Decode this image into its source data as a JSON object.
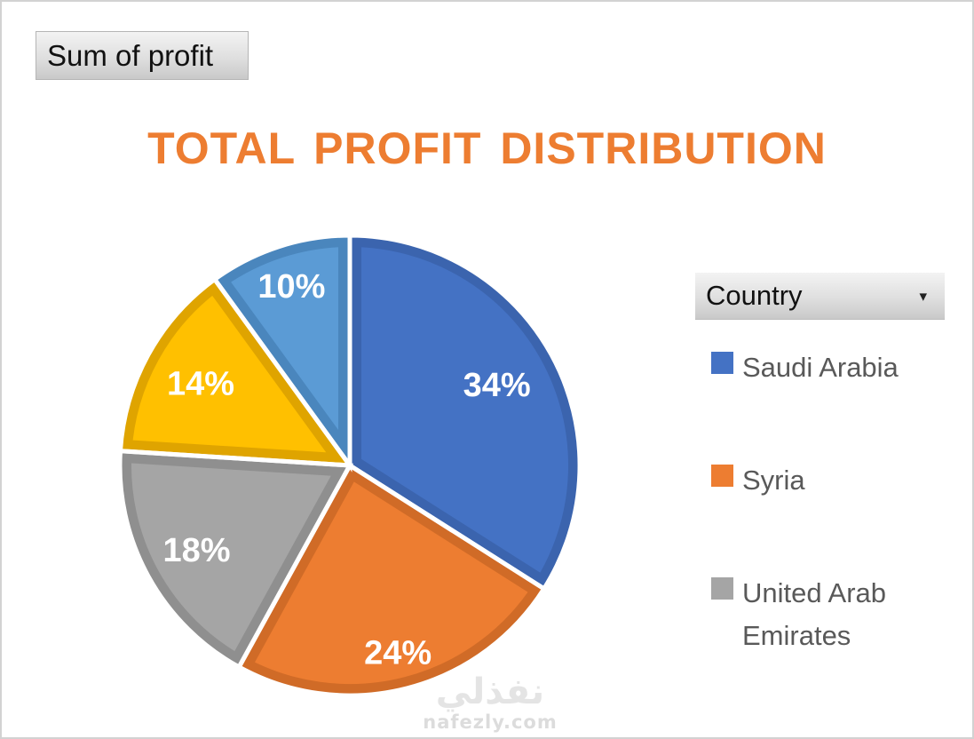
{
  "page": {
    "background": "#ffffff",
    "border_color": "#d2d2d2"
  },
  "pivot_field_button": {
    "label": "Sum of profit"
  },
  "chart_title": "TOTAL PROFIT DISTRIBUTION",
  "title_color": "#ED7D31",
  "filter_button": {
    "label": "Country",
    "arrow_icon": "▾"
  },
  "legend": {
    "position": "right",
    "items": [
      {
        "label": "Saudi Arabia",
        "color": "#4472C4"
      },
      {
        "label": "Syria",
        "color": "#ED7D31"
      },
      {
        "label": "United Arab Emirates",
        "color": "#A5A5A5"
      }
    ]
  },
  "watermark": {
    "arabic": "نفذلي",
    "latin": "nafezly.com"
  },
  "chart_data": {
    "type": "pie",
    "title": "TOTAL PROFIT DISTRIBUTION",
    "start_angle_deg": 0,
    "direction": "clockwise",
    "legend_position": "right",
    "data_labels": "percent, inside",
    "slices": [
      {
        "category": "Saudi Arabia",
        "percent": 34,
        "label": "34%",
        "color": "#4472C4",
        "rim": "#3B64AE"
      },
      {
        "category": "Syria",
        "percent": 24,
        "label": "24%",
        "color": "#ED7D31",
        "rim": "#D06B27"
      },
      {
        "category": "United Arab Emirates",
        "percent": 18,
        "label": "18%",
        "color": "#A5A5A5",
        "rim": "#8F8F8F"
      },
      {
        "category": null,
        "percent": 14,
        "label": "14%",
        "color": "#FFC000",
        "rim": "#DFA400"
      },
      {
        "category": null,
        "percent": 10,
        "label": "10%",
        "color": "#5B9BD5",
        "rim": "#4A86BD"
      }
    ]
  }
}
